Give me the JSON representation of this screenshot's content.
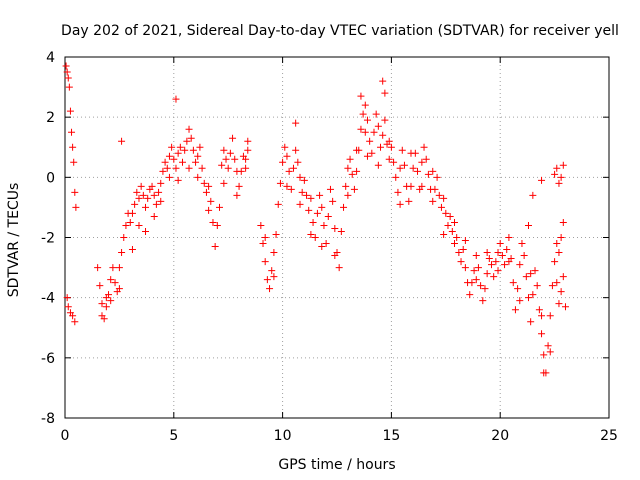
{
  "chart_data": {
    "type": "scatter",
    "title": "Day 202 of 2021, Sidereal Day-to-day VTEC variation (SDTVAR) for receiver yell",
    "xlabel": "GPS time / hours",
    "ylabel": "SDTVAR / TECUs",
    "xlim": [
      0,
      25
    ],
    "ylim": [
      -8,
      4
    ],
    "xticks": [
      "0",
      "5",
      "10",
      "15",
      "20",
      "25"
    ],
    "yticks": [
      "4",
      "2",
      "0",
      "-2",
      "-4",
      "-6",
      "-8"
    ],
    "grid": true,
    "marker": "+",
    "color": "#ff0000",
    "series": [
      {
        "name": "yell",
        "points": [
          [
            0.05,
            3.7
          ],
          [
            0.1,
            3.5
          ],
          [
            0.15,
            3.3
          ],
          [
            0.2,
            3.0
          ],
          [
            0.25,
            2.2
          ],
          [
            0.3,
            1.5
          ],
          [
            0.35,
            1.0
          ],
          [
            0.4,
            0.5
          ],
          [
            0.45,
            -0.5
          ],
          [
            0.5,
            -1.0
          ],
          [
            0.1,
            -4.0
          ],
          [
            0.15,
            -4.3
          ],
          [
            0.25,
            -4.5
          ],
          [
            0.35,
            -4.6
          ],
          [
            0.45,
            -4.8
          ],
          [
            1.5,
            -3.0
          ],
          [
            1.6,
            -3.6
          ],
          [
            1.7,
            -4.2
          ],
          [
            1.8,
            -4.7
          ],
          [
            1.9,
            -4.3
          ],
          [
            2.0,
            -3.9
          ],
          [
            2.1,
            -3.4
          ],
          [
            2.2,
            -3.0
          ],
          [
            2.3,
            -3.5
          ],
          [
            2.4,
            -3.8
          ],
          [
            2.5,
            -3.0
          ],
          [
            2.6,
            -2.5
          ],
          [
            2.7,
            -2.0
          ],
          [
            2.8,
            -1.6
          ],
          [
            2.9,
            -1.2
          ],
          [
            3.0,
            -1.5
          ],
          [
            3.1,
            -1.2
          ],
          [
            3.2,
            -0.9
          ],
          [
            3.3,
            -0.5
          ],
          [
            3.4,
            -0.7
          ],
          [
            3.5,
            -0.3
          ],
          [
            3.6,
            -0.6
          ],
          [
            3.7,
            -1.0
          ],
          [
            3.8,
            -0.7
          ],
          [
            3.9,
            -0.4
          ],
          [
            4.0,
            -0.3
          ],
          [
            4.1,
            -0.6
          ],
          [
            4.2,
            -0.9
          ],
          [
            4.3,
            -0.5
          ],
          [
            4.4,
            -0.2
          ],
          [
            4.5,
            0.2
          ],
          [
            4.6,
            0.5
          ],
          [
            4.7,
            0.3
          ],
          [
            4.8,
            0.7
          ],
          [
            4.9,
            1.0
          ],
          [
            5.0,
            0.6
          ],
          [
            5.1,
            0.3
          ],
          [
            5.2,
            0.8
          ],
          [
            5.3,
            1.0
          ],
          [
            5.4,
            0.5
          ],
          [
            5.5,
            0.9
          ],
          [
            5.6,
            1.2
          ],
          [
            5.7,
            1.6
          ],
          [
            5.8,
            1.3
          ],
          [
            5.9,
            0.9
          ],
          [
            6.0,
            0.5
          ],
          [
            6.1,
            0.7
          ],
          [
            6.2,
            1.0
          ],
          [
            6.3,
            0.3
          ],
          [
            6.4,
            -0.2
          ],
          [
            6.5,
            -0.5
          ],
          [
            6.6,
            -0.3
          ],
          [
            6.7,
            -0.8
          ],
          [
            6.8,
            -1.5
          ],
          [
            6.9,
            -2.3
          ],
          [
            7.0,
            -1.6
          ],
          [
            7.1,
            -1.0
          ],
          [
            7.2,
            0.4
          ],
          [
            7.3,
            0.9
          ],
          [
            7.4,
            0.6
          ],
          [
            7.5,
            0.3
          ],
          [
            7.6,
            0.8
          ],
          [
            7.7,
            1.3
          ],
          [
            7.8,
            0.6
          ],
          [
            7.9,
            0.2
          ],
          [
            8.0,
            -0.3
          ],
          [
            8.1,
            0.2
          ],
          [
            8.2,
            0.7
          ],
          [
            8.3,
            0.3
          ],
          [
            8.4,
            0.9
          ],
          [
            9.0,
            -1.6
          ],
          [
            9.1,
            -2.2
          ],
          [
            9.2,
            -2.8
          ],
          [
            9.3,
            -3.4
          ],
          [
            9.4,
            -3.7
          ],
          [
            9.5,
            -3.1
          ],
          [
            9.6,
            -2.5
          ],
          [
            9.7,
            -1.9
          ],
          [
            9.8,
            -0.9
          ],
          [
            9.9,
            -0.2
          ],
          [
            10.0,
            0.5
          ],
          [
            10.1,
            1.0
          ],
          [
            10.2,
            0.7
          ],
          [
            10.3,
            0.2
          ],
          [
            10.4,
            -0.4
          ],
          [
            10.5,
            0.3
          ],
          [
            10.6,
            0.9
          ],
          [
            10.7,
            0.5
          ],
          [
            10.8,
            0.0
          ],
          [
            10.9,
            -0.5
          ],
          [
            11.0,
            -0.1
          ],
          [
            11.1,
            -0.6
          ],
          [
            11.2,
            -1.1
          ],
          [
            11.3,
            -0.7
          ],
          [
            11.4,
            -1.5
          ],
          [
            11.5,
            -2.0
          ],
          [
            11.6,
            -1.2
          ],
          [
            11.7,
            -0.6
          ],
          [
            11.8,
            -1.0
          ],
          [
            11.9,
            -1.6
          ],
          [
            12.0,
            -2.2
          ],
          [
            12.1,
            -1.3
          ],
          [
            12.2,
            -0.4
          ],
          [
            12.3,
            -0.8
          ],
          [
            12.4,
            -1.7
          ],
          [
            12.5,
            -2.5
          ],
          [
            12.6,
            -3.0
          ],
          [
            12.7,
            -1.8
          ],
          [
            12.8,
            -1.0
          ],
          [
            12.9,
            -0.3
          ],
          [
            13.0,
            0.3
          ],
          [
            13.1,
            0.6
          ],
          [
            13.2,
            0.1
          ],
          [
            13.3,
            -0.4
          ],
          [
            13.4,
            0.2
          ],
          [
            13.5,
            0.9
          ],
          [
            13.6,
            1.6
          ],
          [
            13.7,
            2.1
          ],
          [
            13.8,
            1.5
          ],
          [
            13.9,
            1.9
          ],
          [
            14.0,
            1.2
          ],
          [
            14.1,
            0.8
          ],
          [
            14.2,
            1.5
          ],
          [
            14.3,
            2.1
          ],
          [
            14.4,
            1.7
          ],
          [
            14.5,
            1.0
          ],
          [
            14.6,
            1.4
          ],
          [
            14.7,
            1.9
          ],
          [
            14.8,
            1.1
          ],
          [
            14.9,
            0.6
          ],
          [
            15.0,
            1.0
          ],
          [
            15.1,
            0.5
          ],
          [
            15.2,
            0.0
          ],
          [
            15.3,
            -0.5
          ],
          [
            15.4,
            0.3
          ],
          [
            15.5,
            0.9
          ],
          [
            15.6,
            0.4
          ],
          [
            15.7,
            -0.3
          ],
          [
            15.8,
            -0.8
          ],
          [
            15.9,
            -0.3
          ],
          [
            16.0,
            0.3
          ],
          [
            16.1,
            0.8
          ],
          [
            16.2,
            0.2
          ],
          [
            16.3,
            -0.4
          ],
          [
            16.4,
            0.5
          ],
          [
            16.5,
            1.0
          ],
          [
            16.6,
            0.6
          ],
          [
            16.7,
            0.1
          ],
          [
            16.8,
            -0.4
          ],
          [
            16.9,
            -0.8
          ],
          [
            17.0,
            -0.4
          ],
          [
            17.1,
            0.0
          ],
          [
            17.2,
            -0.6
          ],
          [
            17.3,
            -1.0
          ],
          [
            17.4,
            -0.7
          ],
          [
            17.5,
            -1.2
          ],
          [
            17.6,
            -1.6
          ],
          [
            17.7,
            -1.3
          ],
          [
            17.8,
            -1.8
          ],
          [
            17.9,
            -2.2
          ],
          [
            18.0,
            -2.0
          ],
          [
            18.1,
            -2.5
          ],
          [
            18.2,
            -2.8
          ],
          [
            18.3,
            -2.4
          ],
          [
            18.4,
            -3.0
          ],
          [
            18.5,
            -3.5
          ],
          [
            18.6,
            -3.9
          ],
          [
            18.7,
            -3.5
          ],
          [
            18.8,
            -3.1
          ],
          [
            18.9,
            -2.6
          ],
          [
            19.0,
            -3.0
          ],
          [
            19.1,
            -3.6
          ],
          [
            19.2,
            -4.1
          ],
          [
            19.3,
            -3.7
          ],
          [
            19.4,
            -3.2
          ],
          [
            19.5,
            -2.7
          ],
          [
            19.6,
            -2.9
          ],
          [
            19.7,
            -3.3
          ],
          [
            19.8,
            -2.8
          ],
          [
            19.9,
            -2.5
          ],
          [
            20.0,
            -2.2
          ],
          [
            20.1,
            -2.6
          ],
          [
            20.2,
            -2.9
          ],
          [
            20.3,
            -2.4
          ],
          [
            20.4,
            -2.0
          ],
          [
            20.5,
            -2.7
          ],
          [
            20.6,
            -3.5
          ],
          [
            20.7,
            -4.4
          ],
          [
            20.8,
            -3.7
          ],
          [
            20.9,
            -2.9
          ],
          [
            21.0,
            -2.2
          ],
          [
            21.1,
            -2.6
          ],
          [
            21.2,
            -3.3
          ],
          [
            21.3,
            -4.0
          ],
          [
            21.4,
            -4.8
          ],
          [
            21.5,
            -3.9
          ],
          [
            21.6,
            -3.1
          ],
          [
            21.7,
            -3.6
          ],
          [
            21.8,
            -4.4
          ],
          [
            21.9,
            -5.2
          ],
          [
            22.0,
            -5.9
          ],
          [
            22.1,
            -6.5
          ],
          [
            22.2,
            -5.6
          ],
          [
            22.3,
            -4.6
          ],
          [
            22.4,
            -3.6
          ],
          [
            22.5,
            -2.8
          ],
          [
            22.6,
            -3.5
          ],
          [
            22.7,
            -4.2
          ],
          [
            22.8,
            -3.8
          ],
          [
            22.9,
            -3.3
          ],
          [
            22.6,
            -2.2
          ],
          [
            22.7,
            -2.5
          ],
          [
            22.8,
            -2.0
          ],
          [
            22.9,
            -1.5
          ],
          [
            22.5,
            0.1
          ],
          [
            22.6,
            0.3
          ],
          [
            22.7,
            -0.2
          ],
          [
            22.8,
            0.0
          ],
          [
            22.9,
            0.4
          ],
          [
            1.7,
            -4.6
          ],
          [
            1.9,
            -4.0
          ],
          [
            2.1,
            -4.1
          ],
          [
            2.5,
            -3.7
          ],
          [
            3.1,
            -2.4
          ],
          [
            3.4,
            -1.6
          ],
          [
            3.7,
            -1.8
          ],
          [
            4.1,
            -1.3
          ],
          [
            4.4,
            -0.8
          ],
          [
            4.8,
            0.0
          ],
          [
            5.2,
            -0.1
          ],
          [
            5.7,
            0.3
          ],
          [
            6.1,
            0.0
          ],
          [
            6.6,
            -1.1
          ],
          [
            7.3,
            -0.2
          ],
          [
            7.9,
            -0.6
          ],
          [
            9.2,
            -2.0
          ],
          [
            9.6,
            -3.3
          ],
          [
            10.2,
            -0.3
          ],
          [
            10.8,
            -0.9
          ],
          [
            11.3,
            -1.9
          ],
          [
            11.8,
            -2.3
          ],
          [
            12.4,
            -2.6
          ],
          [
            13.0,
            -0.6
          ],
          [
            13.4,
            0.9
          ],
          [
            13.9,
            0.7
          ],
          [
            14.4,
            0.4
          ],
          [
            14.9,
            1.2
          ],
          [
            15.4,
            -0.9
          ],
          [
            15.9,
            0.8
          ],
          [
            16.4,
            -0.3
          ],
          [
            16.9,
            0.2
          ],
          [
            17.4,
            -1.9
          ],
          [
            17.9,
            -1.5
          ],
          [
            18.4,
            -2.1
          ],
          [
            18.9,
            -3.4
          ],
          [
            19.4,
            -2.5
          ],
          [
            19.9,
            -3.1
          ],
          [
            20.4,
            -2.8
          ],
          [
            20.9,
            -4.1
          ],
          [
            21.4,
            -3.2
          ],
          [
            21.9,
            -4.6
          ],
          [
            22.3,
            -5.8
          ],
          [
            2.6,
            1.2
          ],
          [
            5.1,
            2.6
          ],
          [
            8.4,
            1.2
          ],
          [
            8.3,
            0.6
          ],
          [
            10.6,
            1.8
          ],
          [
            13.6,
            2.7
          ],
          [
            13.8,
            2.4
          ],
          [
            14.6,
            3.2
          ],
          [
            14.7,
            2.8
          ],
          [
            21.3,
            -1.6
          ],
          [
            21.5,
            -0.6
          ],
          [
            21.9,
            -0.1
          ],
          [
            22.0,
            -6.5
          ],
          [
            23.0,
            -4.3
          ]
        ]
      }
    ]
  }
}
